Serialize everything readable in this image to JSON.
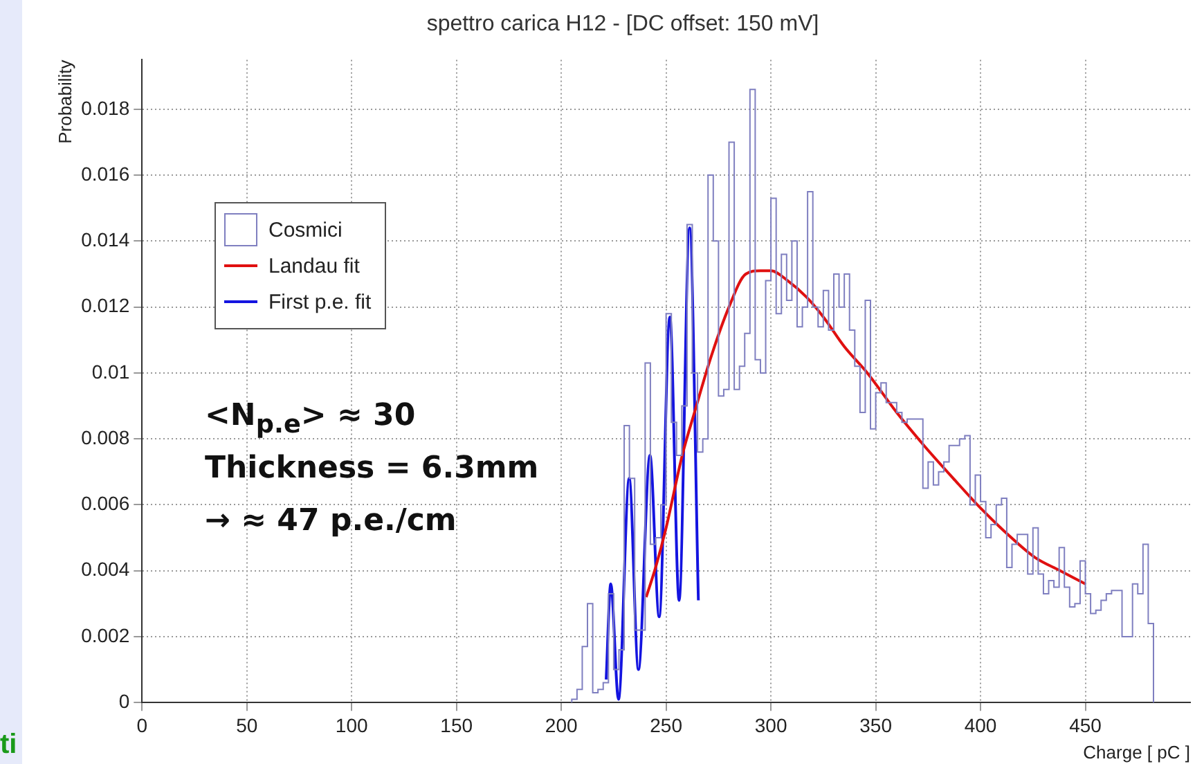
{
  "chart_data": {
    "type": "histogram",
    "title": "spettro carica H12 - [DC offset: 150 mV]",
    "xlabel": "Charge [ pC ]",
    "ylabel": "Probability",
    "xlim": [
      0,
      500
    ],
    "ylim": [
      0,
      0.0195
    ],
    "xticks": [
      0,
      50,
      100,
      150,
      200,
      250,
      300,
      350,
      400,
      450
    ],
    "yticks": [
      0,
      0.002,
      0.004,
      0.006,
      0.008,
      0.01,
      0.012,
      0.014,
      0.016,
      0.018
    ],
    "grid": true,
    "legend": "top left",
    "series": [
      {
        "name": "Cosmici",
        "color": "#7f7fc0",
        "bins": [
          205,
          207.5,
          210,
          212.5,
          215,
          217.5,
          220,
          222.5,
          225,
          227.5,
          230,
          232.5,
          235,
          237.5,
          240,
          242.5,
          245,
          247.5,
          250,
          252.5,
          255,
          257.5,
          260,
          262.5,
          265,
          267.5,
          270,
          272.5,
          275,
          277.5,
          280,
          282.5,
          285,
          287.5,
          290,
          292.5,
          295,
          297.5,
          300,
          302.5,
          305,
          307.5,
          310,
          312.5,
          315,
          317.5,
          320,
          322.5,
          325,
          327.5,
          330,
          332.5,
          335,
          337.5,
          340,
          342.5,
          345,
          347.5,
          350,
          352.5,
          355,
          357.5,
          360,
          362.5,
          365,
          367.5,
          370,
          372.5,
          375,
          377.5,
          380,
          382.5,
          385,
          387.5,
          390,
          392.5,
          395,
          397.5,
          400,
          402.5,
          405,
          407.5,
          410,
          412.5,
          415,
          417.5,
          420,
          422.5,
          425,
          427.5,
          430,
          432.5,
          435,
          437.5,
          440,
          442.5,
          445,
          447.5,
          450,
          452.5,
          455,
          457.5,
          460,
          462.5,
          465,
          467.5,
          470,
          472.5,
          475,
          477.5,
          480,
          482.5
        ],
        "values": [
          0.0001,
          0.0004,
          0.0017,
          0.003,
          0.0003,
          0.0004,
          0.0006,
          0.0033,
          0.001,
          0.0016,
          0.0084,
          0.0068,
          0.0022,
          0.0022,
          0.0103,
          0.0048,
          0.005,
          0.006,
          0.0118,
          0.0085,
          0.0075,
          0.009,
          0.0145,
          0.01,
          0.0076,
          0.008,
          0.016,
          0.014,
          0.0093,
          0.0095,
          0.017,
          0.0095,
          0.0102,
          0.0112,
          0.0186,
          0.0104,
          0.01,
          0.0128,
          0.0153,
          0.0118,
          0.0136,
          0.0122,
          0.014,
          0.0114,
          0.012,
          0.0155,
          0.012,
          0.0114,
          0.0125,
          0.0113,
          0.013,
          0.012,
          0.013,
          0.0113,
          0.0102,
          0.0088,
          0.0122,
          0.0083,
          0.0094,
          0.0097,
          0.0091,
          0.0091,
          0.0088,
          0.0085,
          0.0086,
          0.0086,
          0.0086,
          0.0065,
          0.0073,
          0.0066,
          0.007,
          0.0073,
          0.0078,
          0.0078,
          0.008,
          0.0081,
          0.006,
          0.0069,
          0.0061,
          0.005,
          0.0054,
          0.006,
          0.0062,
          0.0041,
          0.0048,
          0.0051,
          0.0051,
          0.0039,
          0.0053,
          0.0039,
          0.0033,
          0.0037,
          0.0035,
          0.0047,
          0.0035,
          0.0029,
          0.003,
          0.0043,
          0.0033,
          0.0027,
          0.0028,
          0.0031,
          0.0033,
          0.0034,
          0.0034,
          0.002,
          0.002,
          0.0036,
          0.0033,
          0.0048,
          0.0024
        ]
      },
      {
        "name": "Landau fit",
        "type": "line",
        "color": "#e01010",
        "x": [
          240.5,
          245,
          250,
          257.7,
          264,
          271,
          280,
          288,
          295,
          300,
          308,
          317,
          325,
          335,
          346,
          360,
          373,
          387,
          400,
          413,
          426,
          438,
          450
        ],
        "values": [
          0.0032,
          0.0041,
          0.0053,
          0.0075,
          0.0089,
          0.0104,
          0.012,
          0.013,
          0.0131,
          0.0131,
          0.0128,
          0.0123,
          0.0117,
          0.0108,
          0.01,
          0.0088,
          0.0078,
          0.0068,
          0.0059,
          0.0051,
          0.0044,
          0.004,
          0.0036
        ]
      },
      {
        "name": "First p.e. fit",
        "type": "line",
        "color": "#1414e0",
        "x": [
          221.4,
          223.6,
          227.3,
          232.4,
          236.8,
          242.3,
          246.7,
          251.8,
          256.2,
          261.2,
          265.4
        ],
        "values": [
          0.0007,
          0.0036,
          0.0001,
          0.0068,
          0.001,
          0.0075,
          0.0026,
          0.0117,
          0.0031,
          0.0144,
          0.0031
        ]
      }
    ],
    "annotations": [
      "<N$_{p.e}$> ≈ 30",
      "Thickness = 6.3mm",
      "→ ≈ 47 p.e./cm",
      "ti"
    ]
  }
}
